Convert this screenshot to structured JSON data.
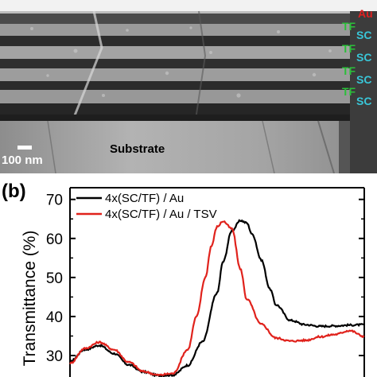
{
  "micrograph": {
    "scale_bar_label": "100 nm",
    "substrate_label": "Substrate",
    "layer_labels": [
      {
        "text": "Au",
        "color": "#e02020"
      },
      {
        "text": "TF",
        "color": "#2bbf3a"
      },
      {
        "text": "SC",
        "color": "#39c6d8"
      },
      {
        "text": "TF",
        "color": "#2bbf3a"
      },
      {
        "text": "SC",
        "color": "#39c6d8"
      },
      {
        "text": "TF",
        "color": "#2bbf3a"
      },
      {
        "text": "SC",
        "color": "#39c6d8"
      },
      {
        "text": "TF",
        "color": "#2bbf3a"
      },
      {
        "text": "SC",
        "color": "#39c6d8"
      }
    ]
  },
  "chart_data": {
    "panel_label": "(b)",
    "type": "line",
    "title": "",
    "xlabel": "",
    "ylabel": "Transmittance (%)",
    "ylim": [
      24.5,
      73
    ],
    "xlim": [
      0,
      1
    ],
    "yticks": [
      30,
      40,
      50,
      60,
      70
    ],
    "legend_position": "top-right",
    "series": [
      {
        "name": "4x(SC/TF) / Au",
        "color": "#000000",
        "x": [
          0.0,
          0.05,
          0.1,
          0.15,
          0.2,
          0.25,
          0.3,
          0.35,
          0.4,
          0.45,
          0.5,
          0.52,
          0.55,
          0.58,
          0.6,
          0.62,
          0.65,
          0.68,
          0.7,
          0.75,
          0.8,
          0.85,
          0.9,
          0.95,
          1.0
        ],
        "y": [
          28.5,
          31.5,
          32.6,
          30.5,
          27.6,
          25.8,
          24.9,
          25.0,
          27.5,
          33.5,
          46.0,
          54.0,
          62.0,
          64.6,
          64.0,
          61.0,
          54.5,
          47.0,
          43.0,
          39.0,
          37.9,
          37.5,
          37.6,
          37.8,
          37.9
        ]
      },
      {
        "name": "4x(SC/TF) / Au / TSV",
        "color": "#e0221c",
        "x": [
          0.0,
          0.05,
          0.1,
          0.15,
          0.2,
          0.25,
          0.3,
          0.35,
          0.4,
          0.43,
          0.46,
          0.48,
          0.5,
          0.52,
          0.55,
          0.58,
          0.6,
          0.65,
          0.7,
          0.75,
          0.8,
          0.85,
          0.9,
          0.95,
          1.0
        ],
        "y": [
          28.0,
          31.8,
          33.4,
          31.5,
          28.3,
          25.9,
          25.0,
          25.4,
          31.5,
          40.0,
          50.0,
          58.0,
          63.0,
          64.4,
          62.5,
          52.0,
          44.5,
          38.0,
          34.5,
          33.7,
          33.9,
          34.8,
          35.4,
          36.4,
          34.9
        ]
      }
    ]
  }
}
